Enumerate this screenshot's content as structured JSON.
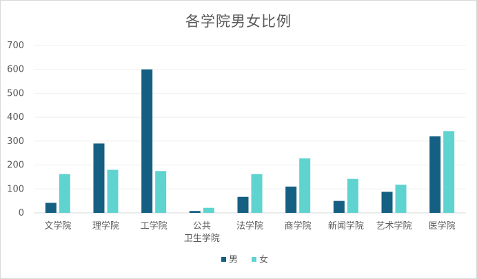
{
  "chart_data": {
    "type": "bar",
    "title": "各学院男女比例",
    "categories": [
      "文学院",
      "理学院",
      "工学院",
      "公共卫生学院",
      "法学院",
      "商学院",
      "新闻学院",
      "艺术学院",
      "医学院"
    ],
    "category_lines": [
      [
        "文学院"
      ],
      [
        "理学院"
      ],
      [
        "工学院"
      ],
      [
        "公共",
        "卫生学院"
      ],
      [
        "法学院"
      ],
      [
        "商学院"
      ],
      [
        "新闻学院"
      ],
      [
        "艺术学院"
      ],
      [
        "医学院"
      ]
    ],
    "series": [
      {
        "name": "男",
        "color": "#156082",
        "values": [
          42,
          290,
          600,
          8,
          67,
          110,
          50,
          88,
          320
        ]
      },
      {
        "name": "女",
        "color": "#5fd3cf",
        "values": [
          162,
          180,
          175,
          21,
          162,
          228,
          142,
          118,
          342
        ]
      }
    ],
    "ylim": [
      0,
      700
    ],
    "yticks": [
      0,
      100,
      200,
      300,
      400,
      500,
      600,
      700
    ],
    "grid": true,
    "legend_position": "bottom"
  }
}
